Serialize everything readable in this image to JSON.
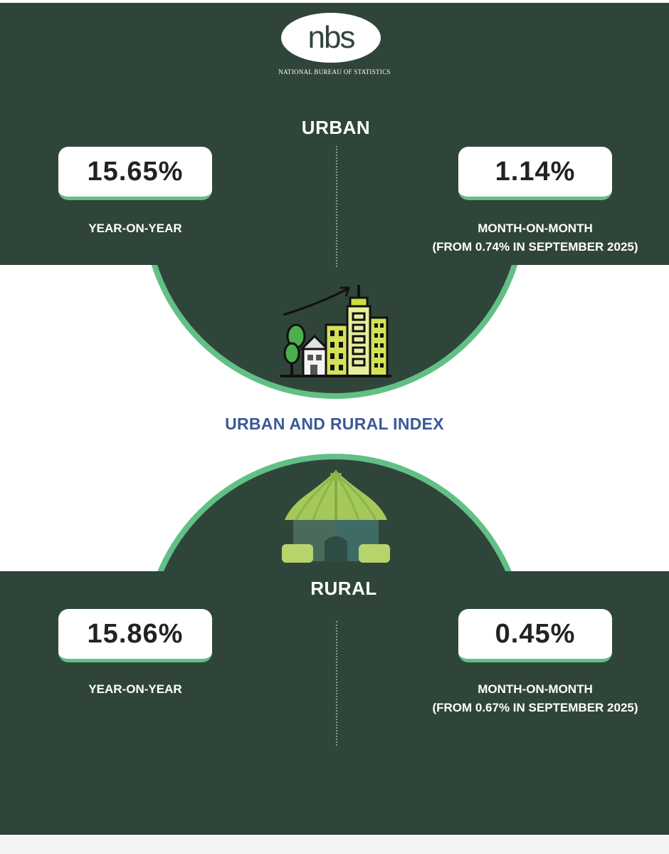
{
  "header": {
    "logo_text": "nbs",
    "org_name": "NATIONAL BUREAU OF STATISTICS"
  },
  "urban": {
    "title": "URBAN",
    "year_on_year": {
      "value": "15.65%",
      "label": "YEAR-ON-YEAR"
    },
    "month_on_month": {
      "value": "1.14%",
      "label": "MONTH-ON-MONTH",
      "note": "(FROM 0.74% IN SEPTEMBER 2025)"
    }
  },
  "index_title": "URBAN AND RURAL INDEX",
  "rural": {
    "title": "RURAL",
    "year_on_year": {
      "value": "15.86%",
      "label": "YEAR-ON-YEAR"
    },
    "month_on_month": {
      "value": "0.45%",
      "label": "MONTH-ON-MONTH",
      "note": "(FROM 0.67% IN SEPTEMBER 2025)"
    }
  },
  "icons": [
    "city-growth-icon",
    "hut-icon"
  ],
  "colors": {
    "panel": "#30453a",
    "accent": "#62bf86",
    "index_title": "#3b5998"
  }
}
